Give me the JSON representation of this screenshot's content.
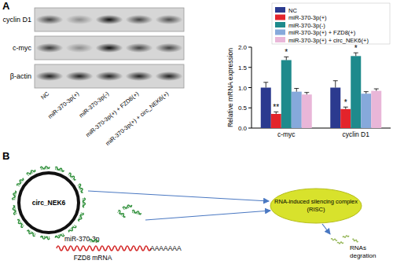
{
  "panel_labels": [
    "A",
    "B"
  ],
  "blot": {
    "rows": [
      "cyclin D1",
      "c-myc",
      "β-actin"
    ],
    "lanes": [
      "NC",
      "miR-370-3p(+)",
      "miR-370-3p(-)",
      "miR-370-3p(+) + FZD8(+)",
      "miR-370-3p(+) + circ_NEK6(+)"
    ]
  },
  "chart_data": {
    "type": "bar",
    "ylabel": "Relative mRNA expression",
    "categories": [
      "c-myc",
      "cyclin D1"
    ],
    "series": [
      {
        "name": "NC",
        "color": "#2b3a8f",
        "values": [
          1.0,
          1.0
        ],
        "errors": [
          0.13,
          0.17
        ],
        "significance": [
          null,
          null
        ]
      },
      {
        "name": "miR-370-3p(+)",
        "color": "#e3242b",
        "values": [
          0.35,
          0.47
        ],
        "errors": [
          0.05,
          0.05
        ],
        "significance": [
          "**",
          "*"
        ]
      },
      {
        "name": "miR-370-3p(-)",
        "color": "#1e8a8c",
        "values": [
          1.68,
          1.78
        ],
        "errors": [
          0.08,
          0.08
        ],
        "significance": [
          "*",
          "*"
        ]
      },
      {
        "name": "miR-370-3p(+) + FZD8(+)",
        "color": "#86a9db",
        "values": [
          0.9,
          0.85
        ],
        "errors": [
          0.08,
          0.05
        ],
        "significance": [
          null,
          null
        ]
      },
      {
        "name": "miR-370-3p(+) + circ_NEK6(+)",
        "color": "#e9b6d8",
        "values": [
          0.83,
          0.92
        ],
        "errors": [
          0.05,
          0.05
        ],
        "significance": [
          null,
          null
        ]
      }
    ],
    "ylim": [
      0,
      2
    ],
    "yticks": [
      {
        "value": 0,
        "label": "0.0"
      },
      {
        "value": 0.5,
        "label": "0.5"
      },
      {
        "value": 1,
        "label": "1.0"
      },
      {
        "value": 1.5,
        "label": "1.5"
      },
      {
        "value": 2,
        "label": "2.0"
      }
    ],
    "grid": false,
    "legend": "top-right"
  },
  "diagram": {
    "circ_label": "circ_NEK6",
    "mirna_label": "miR-370-3p",
    "mrna_label": "FZD8 mRNA",
    "poly_a": "AAAAAAA",
    "risc_label": [
      "RNA-induced silencing complex",
      "(RISC)"
    ],
    "degradation_label": [
      "RNAs",
      "degration"
    ]
  }
}
